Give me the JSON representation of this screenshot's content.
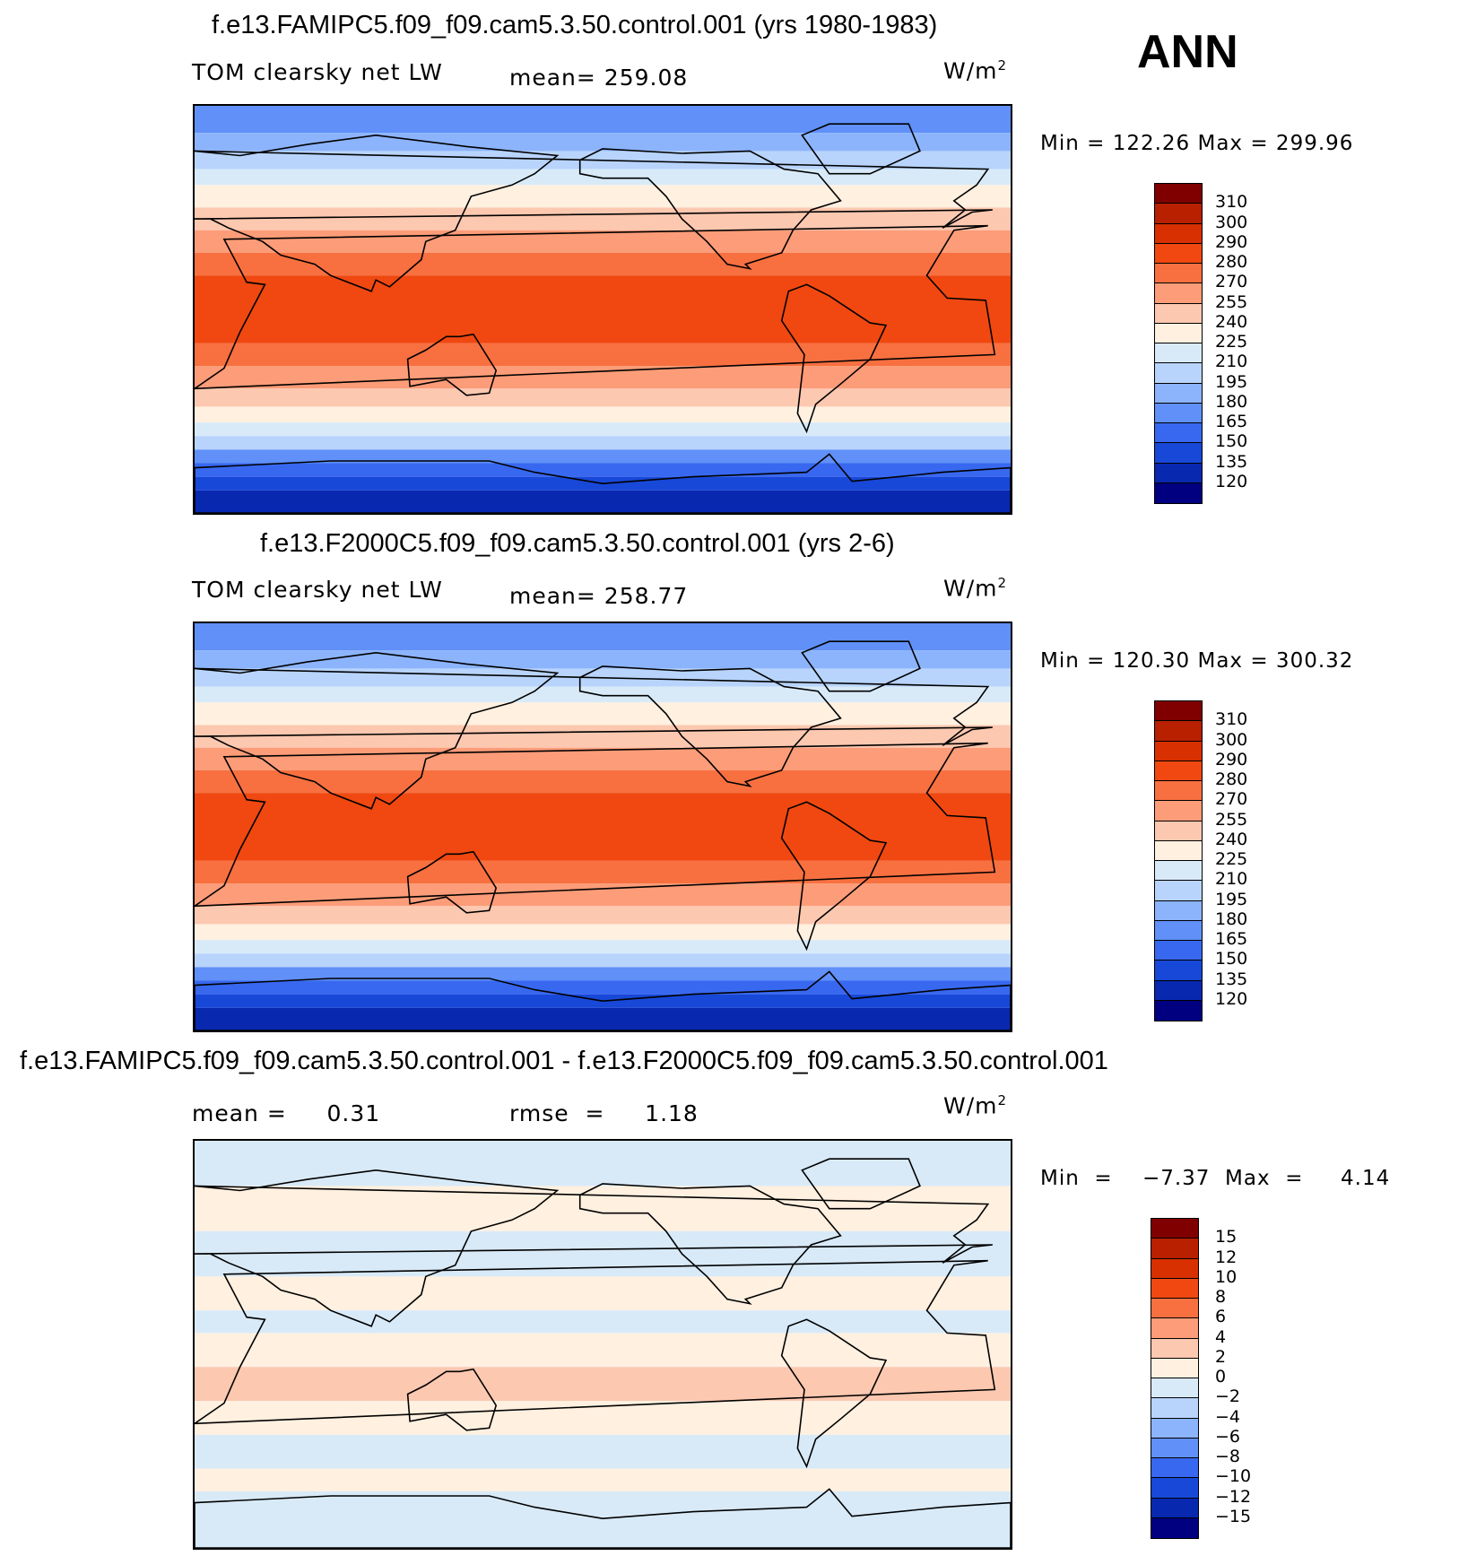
{
  "season": "ANN",
  "panels": [
    {
      "id": "top",
      "title": "f.e13.FAMIPC5.f09_f09.cam5.3.50.control.001 (yrs 1980-1983)",
      "left_label": "TOM clearsky net LW",
      "center_label": "mean=  259.08",
      "units": "W/m",
      "units_sup": "2",
      "minmax": "Min  =  122.26  Max  =  299.96",
      "levels": [
        "310",
        "300",
        "290",
        "280",
        "270",
        "255",
        "240",
        "225",
        "210",
        "195",
        "180",
        "165",
        "150",
        "135",
        "120"
      ],
      "colors": [
        "#800000",
        "#b82000",
        "#d83000",
        "#f04810",
        "#f87040",
        "#fc9c78",
        "#fcc8b0",
        "#fff0e0",
        "#d8eaf8",
        "#b8d4fc",
        "#8cb4fc",
        "#6090f8",
        "#3868f0",
        "#1848d8",
        "#0828b0",
        "#000080"
      ],
      "field": "absolute"
    },
    {
      "id": "middle",
      "title": "f.e13.F2000C5.f09_f09.cam5.3.50.control.001 (yrs 2-6)",
      "left_label": "TOM clearsky net LW",
      "center_label": "mean=  258.77",
      "units": "W/m",
      "units_sup": "2",
      "minmax": "Min  =  120.30  Max  =  300.32",
      "levels": [
        "310",
        "300",
        "290",
        "280",
        "270",
        "255",
        "240",
        "225",
        "210",
        "195",
        "180",
        "165",
        "150",
        "135",
        "120"
      ],
      "colors": [
        "#800000",
        "#b82000",
        "#d83000",
        "#f04810",
        "#f87040",
        "#fc9c78",
        "#fcc8b0",
        "#fff0e0",
        "#d8eaf8",
        "#b8d4fc",
        "#8cb4fc",
        "#6090f8",
        "#3868f0",
        "#1848d8",
        "#0828b0",
        "#000080"
      ],
      "field": "absolute"
    },
    {
      "id": "bottom",
      "title": "f.e13.FAMIPC5.f09_f09.cam5.3.50.control.001 - f.e13.F2000C5.f09_f09.cam5.3.50.control.001",
      "left_label": "mean =     0.31",
      "center_label": "rmse  =     1.18",
      "units": "W/m",
      "units_sup": "2",
      "minmax": "Min  =    −7.37  Max  =     4.14",
      "levels": [
        "15",
        "12",
        "10",
        "8",
        "6",
        "4",
        "2",
        "0",
        "−2",
        "−4",
        "−6",
        "−8",
        "−10",
        "−12",
        "−15"
      ],
      "colors": [
        "#800000",
        "#b82000",
        "#d83000",
        "#f04810",
        "#f87040",
        "#fc9c78",
        "#fcc8b0",
        "#fff0e0",
        "#d8eaf8",
        "#b8d4fc",
        "#8cb4fc",
        "#6090f8",
        "#3868f0",
        "#1848d8",
        "#0828b0",
        "#000080"
      ],
      "field": "difference"
    }
  ]
}
